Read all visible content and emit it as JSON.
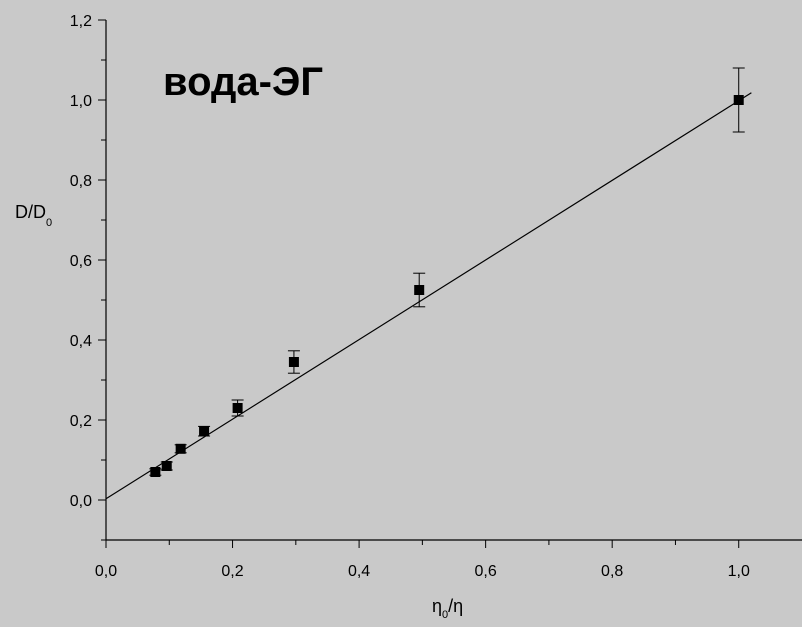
{
  "chart_data": {
    "type": "scatter",
    "title": "вода-ЭГ",
    "title_color": "#1f28e0",
    "xlabel": {
      "main": "η",
      "sub": "0",
      "rest": "/η"
    },
    "ylabel": {
      "main": "D/D",
      "sub": "0"
    },
    "xlim": [
      0.0,
      1.1
    ],
    "ylim": [
      -0.1,
      1.2
    ],
    "x_ticks": [
      0.0,
      0.2,
      0.4,
      0.6,
      0.8,
      1.0
    ],
    "x_tick_labels": [
      "0,0",
      "0,2",
      "0,4",
      "0,6",
      "0,8",
      "1,0"
    ],
    "y_ticks": [
      0.0,
      0.2,
      0.4,
      0.6,
      0.8,
      1.0,
      1.2
    ],
    "y_tick_labels": [
      "0,0",
      "0,2",
      "0,4",
      "0,6",
      "0,8",
      "1,0",
      "1,2"
    ],
    "grid": false,
    "points": [
      {
        "x": 0.078,
        "y": 0.07,
        "err": 0.008
      },
      {
        "x": 0.096,
        "y": 0.085,
        "err": 0.01
      },
      {
        "x": 0.118,
        "y": 0.128,
        "err": 0.01
      },
      {
        "x": 0.155,
        "y": 0.172,
        "err": 0.012
      },
      {
        "x": 0.208,
        "y": 0.23,
        "err": 0.02
      },
      {
        "x": 0.297,
        "y": 0.345,
        "err": 0.028
      },
      {
        "x": 0.495,
        "y": 0.525,
        "err": 0.042
      },
      {
        "x": 1.0,
        "y": 1.0,
        "err": 0.08
      }
    ],
    "fit_line": {
      "x": [
        0.0,
        1.02
      ],
      "y": [
        0.003,
        1.018
      ]
    },
    "colors": {
      "marker": "#000000",
      "line": "#000000",
      "background": "#c9c9c9"
    }
  }
}
